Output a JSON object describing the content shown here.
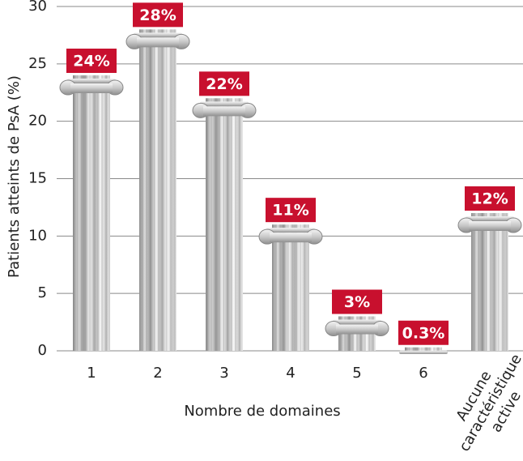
{
  "chart_data": {
    "type": "bar",
    "categories": [
      "1",
      "2",
      "3",
      "4",
      "5",
      "6",
      "Aucune caractéristique active"
    ],
    "values": [
      24,
      28,
      22,
      11,
      3,
      0.3,
      12
    ],
    "value_labels": [
      "24%",
      "28%",
      "22%",
      "11%",
      "3%",
      "0.3%",
      "12%"
    ],
    "x_label": "Nombre de domaines",
    "y_label": "Patients atteints de PsA (%)",
    "ylim": [
      0,
      30
    ],
    "yticks": [
      0,
      5,
      10,
      15,
      20,
      25,
      30
    ],
    "grid": true,
    "color": "#c8102e"
  }
}
